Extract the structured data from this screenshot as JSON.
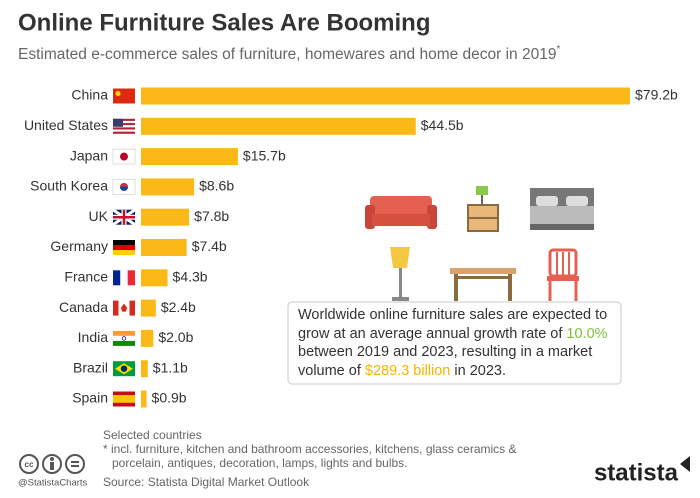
{
  "chart_data": {
    "type": "bar",
    "orientation": "horizontal",
    "title": "Online Furniture Sales Are Booming",
    "subtitle": "Estimated e-commerce sales of furniture, homewares and home decor in 2019",
    "subtitle_note_mark": "*",
    "categories": [
      "China",
      "United States",
      "Japan",
      "South Korea",
      "UK",
      "Germany",
      "France",
      "Canada",
      "India",
      "Brazil",
      "Spain"
    ],
    "values": [
      79.2,
      44.5,
      15.7,
      8.6,
      7.8,
      7.4,
      4.3,
      2.4,
      2.0,
      1.1,
      0.9
    ],
    "value_labels": [
      "$79.2b",
      "$44.5b",
      "$15.7b",
      "$8.6b",
      "$7.8b",
      "$7.4b",
      "$4.3b",
      "$2.4b",
      "$2.0b",
      "$1.1b",
      "$0.9b"
    ],
    "color": "#fbb918",
    "annotation": {
      "text_1": "Worldwide online furniture sales are expected to grow at an average annual growth rate of ",
      "highlight_1": "10.0%",
      "text_2": " between 2019 and 2023, resulting in a market volume of ",
      "highlight_2": "$289.3 billion",
      "text_3": " in 2023."
    },
    "footer": {
      "selection": "Selected countries",
      "note": "* incl. furniture, kitchen and bathroom accessories, kitchens, glass ceramics & porcelain, antiques, decoration, lamps, lights and bulbs.",
      "source": "Source: Statista Digital Market Outlook",
      "handle": "@StatistaCharts",
      "brand": "statista"
    }
  }
}
